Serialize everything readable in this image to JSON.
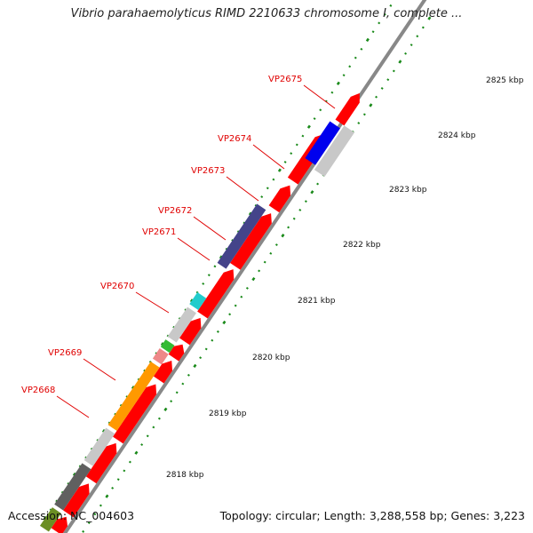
{
  "title": "Vibrio parahaemolyticus RIMD 2210633 chromosome I, complete ...",
  "footer": {
    "accession": "Accession: NC_004603",
    "summary": "Topology: circular; Length: 3,288,558 bp; Genes: 3,223"
  },
  "scale_labels": [
    "2818 kbp",
    "2819 kbp",
    "2820 kbp",
    "2821 kbp",
    "2822 kbp",
    "2823 kbp",
    "2824 kbp",
    "2825 kbp"
  ],
  "gene_labels": [
    "VP2668",
    "VP2669",
    "VP2670",
    "VP2671",
    "VP2672",
    "VP2673",
    "VP2674",
    "VP2675"
  ],
  "colors": {
    "cds": "#ff0000",
    "label": "#e00000",
    "grey": "#c8c8c8",
    "dark_grey": "#606060",
    "orange": "#ff9900",
    "pink": "#ee8888",
    "green": "#33bb33",
    "cyan": "#22cccc",
    "purple": "#44448a",
    "blue": "#0000ee",
    "olive": "#6b8e23",
    "ticks": "#1a8a1a",
    "backbone": "#888888"
  }
}
